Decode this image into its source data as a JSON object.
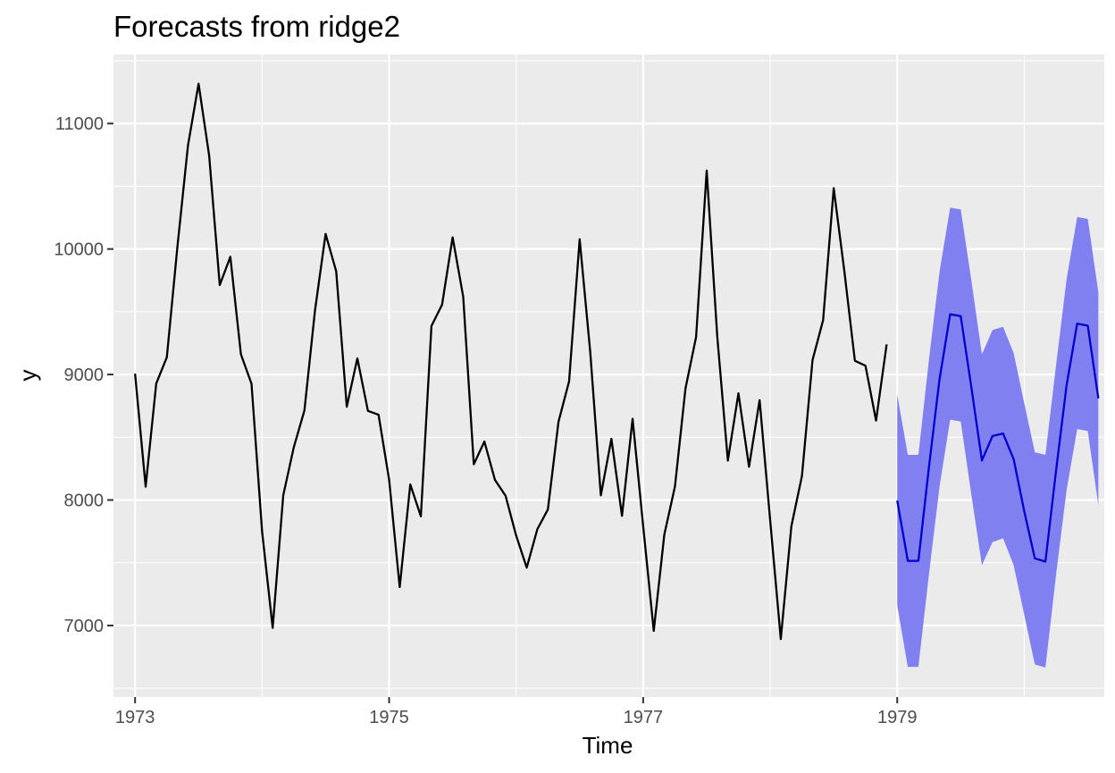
{
  "chart_data": {
    "type": "line",
    "title": "Forecasts from ridge2",
    "xlabel": "Time",
    "ylabel": "y",
    "xlim": [
      1972.83,
      1980.63
    ],
    "ylim": [
      6430,
      11550
    ],
    "grid": true,
    "legend": "none",
    "x_ticks": [
      1973,
      1975,
      1977,
      1979
    ],
    "x_tick_labels": [
      "1973",
      "1975",
      "1977",
      "1979"
    ],
    "y_ticks": [
      7000,
      8000,
      9000,
      10000,
      11000
    ],
    "y_tick_labels": [
      "7000",
      "8000",
      "9000",
      "10000",
      "11000"
    ],
    "colors": {
      "panel": "#ebebeb",
      "grid": "#ffffff",
      "history": "#000000",
      "forecast": "#0000cc",
      "interval": "#8080f0"
    },
    "history": {
      "start": 1973,
      "frequency": 12,
      "values": [
        9007,
        8106,
        8928,
        9137,
        10017,
        10826,
        11317,
        10744,
        9713,
        9938,
        9161,
        8927,
        7750,
        6981,
        8038,
        8422,
        8714,
        9512,
        10120,
        9823,
        8743,
        9129,
        8710,
        8680,
        8162,
        7306,
        8124,
        7870,
        9387,
        9556,
        10093,
        9620,
        8285,
        8466,
        8160,
        8034,
        7717,
        7461,
        7767,
        7925,
        8623,
        8945,
        10078,
        9179,
        8037,
        8488,
        7874,
        8647,
        7792,
        6957,
        7726,
        8106,
        8890,
        9299,
        10625,
        9302,
        8314,
        8850,
        8265,
        8796,
        7836,
        6892,
        7791,
        8192,
        9115,
        9434,
        10484,
        9827,
        9110,
        9070,
        8633,
        9240
      ]
    },
    "forecast": {
      "start": 1979,
      "frequency": 12,
      "mean": [
        7995,
        7515,
        7515,
        8265,
        8965,
        9480,
        9465,
        8900,
        8315,
        8510,
        8530,
        8325,
        7910,
        7535,
        7510,
        8230,
        8915,
        9405,
        9390,
        8810
      ],
      "lower": [
        7160,
        6670,
        6670,
        7410,
        8110,
        8640,
        8625,
        8045,
        7480,
        7665,
        7695,
        7480,
        7085,
        6690,
        6665,
        7400,
        8080,
        8565,
        8550,
        7960
      ],
      "upper": [
        8840,
        8360,
        8360,
        9120,
        9820,
        10330,
        10315,
        9750,
        9160,
        9355,
        9380,
        9170,
        8770,
        8380,
        8360,
        9070,
        9760,
        10255,
        10240,
        9655
      ]
    }
  }
}
